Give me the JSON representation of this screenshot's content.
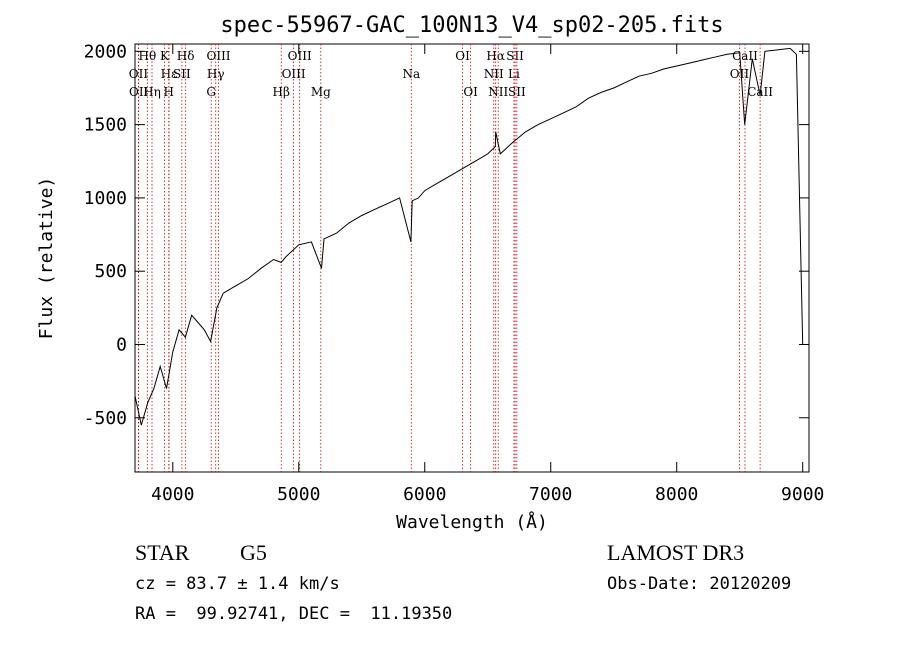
{
  "chart_data": {
    "type": "line",
    "title": "spec-55967-GAC_100N13_V4_sp02-205.fits",
    "xlabel": "Wavelength (Å)",
    "ylabel": "Flux (relative)",
    "xlim": [
      3700,
      9050
    ],
    "ylim": [
      -870,
      2050
    ],
    "xticks": [
      4000,
      5000,
      6000,
      7000,
      8000,
      9000
    ],
    "yticks": [
      -500,
      0,
      500,
      1000,
      1500,
      2000
    ],
    "series": [
      {
        "name": "flux",
        "x": [
          3700,
          3750,
          3800,
          3850,
          3900,
          3950,
          4000,
          4050,
          4100,
          4150,
          4200,
          4250,
          4300,
          4350,
          4400,
          4500,
          4600,
          4700,
          4800,
          4860,
          4900,
          5000,
          5100,
          5180,
          5200,
          5300,
          5400,
          5500,
          5600,
          5700,
          5800,
          5890,
          5900,
          5950,
          6000,
          6100,
          6200,
          6300,
          6400,
          6500,
          6560,
          6563,
          6600,
          6700,
          6800,
          6900,
          7000,
          7100,
          7200,
          7300,
          7400,
          7500,
          7600,
          7700,
          7800,
          7900,
          8000,
          8100,
          8200,
          8300,
          8400,
          8500,
          8540,
          8600,
          8662,
          8700,
          8800,
          8900,
          8950,
          9000
        ],
        "values": [
          -350,
          -550,
          -400,
          -300,
          -150,
          -300,
          -50,
          100,
          50,
          200,
          150,
          100,
          20,
          250,
          350,
          400,
          450,
          520,
          580,
          560,
          600,
          680,
          700,
          520,
          720,
          760,
          830,
          880,
          920,
          960,
          1000,
          700,
          980,
          1000,
          1050,
          1100,
          1150,
          1200,
          1250,
          1300,
          1350,
          1450,
          1300,
          1380,
          1450,
          1500,
          1540,
          1580,
          1620,
          1680,
          1720,
          1750,
          1790,
          1830,
          1850,
          1880,
          1900,
          1920,
          1940,
          1960,
          1980,
          1990,
          1500,
          1950,
          1700,
          2000,
          2010,
          2020,
          1980,
          0
        ]
      }
    ],
    "spectral_lines": [
      {
        "label": "Hθ",
        "wl": 3798,
        "row": 0
      },
      {
        "label": "OII",
        "wl": 3727,
        "row": 1
      },
      {
        "label": "OII",
        "wl": 3729,
        "row": 2
      },
      {
        "label": "Hε",
        "wl": 3970,
        "row": 1
      },
      {
        "label": "Hη",
        "wl": 3835,
        "row": 2
      },
      {
        "label": "K",
        "wl": 3934,
        "row": 0
      },
      {
        "label": "H",
        "wl": 3968,
        "row": 2
      },
      {
        "label": "Hδ",
        "wl": 4102,
        "row": 0
      },
      {
        "label": "SII",
        "wl": 4072,
        "row": 1
      },
      {
        "label": "OIII",
        "wl": 4363,
        "row": 0
      },
      {
        "label": "Hγ",
        "wl": 4341,
        "row": 1
      },
      {
        "label": "G",
        "wl": 4305,
        "row": 2
      },
      {
        "label": "Hβ",
        "wl": 4861,
        "row": 2
      },
      {
        "label": "OIII",
        "wl": 5007,
        "row": 0
      },
      {
        "label": "OIII",
        "wl": 4959,
        "row": 1
      },
      {
        "label": "Mg",
        "wl": 5175,
        "row": 2
      },
      {
        "label": "Na",
        "wl": 5893,
        "row": 1
      },
      {
        "label": "OI",
        "wl": 6300,
        "row": 0
      },
      {
        "label": "OI",
        "wl": 6364,
        "row": 2
      },
      {
        "label": "Hα",
        "wl": 6563,
        "row": 0
      },
      {
        "label": "NII",
        "wl": 6548,
        "row": 1
      },
      {
        "label": "NII",
        "wl": 6583,
        "row": 2
      },
      {
        "label": "SII",
        "wl": 6717,
        "row": 0
      },
      {
        "label": "Li",
        "wl": 6708,
        "row": 1
      },
      {
        "label": "SII",
        "wl": 6731,
        "row": 2
      },
      {
        "label": "CaII",
        "wl": 8542,
        "row": 0
      },
      {
        "label": "OII",
        "wl": 8498,
        "row": 1
      },
      {
        "label": "CaII",
        "wl": 8662,
        "row": 2
      }
    ],
    "grid": false
  },
  "info": {
    "object_type": "STAR",
    "subclass": "G5",
    "survey": "LAMOST DR3",
    "redshift": "cz = 83.7 ± 1.4 km/s",
    "obs_date": "Obs-Date: 20120209",
    "coords": "RA =  99.92741, DEC =  11.19350"
  },
  "colors": {
    "axis": "#000000",
    "spectrum": "#000000",
    "line_marker": "#cc0000"
  }
}
